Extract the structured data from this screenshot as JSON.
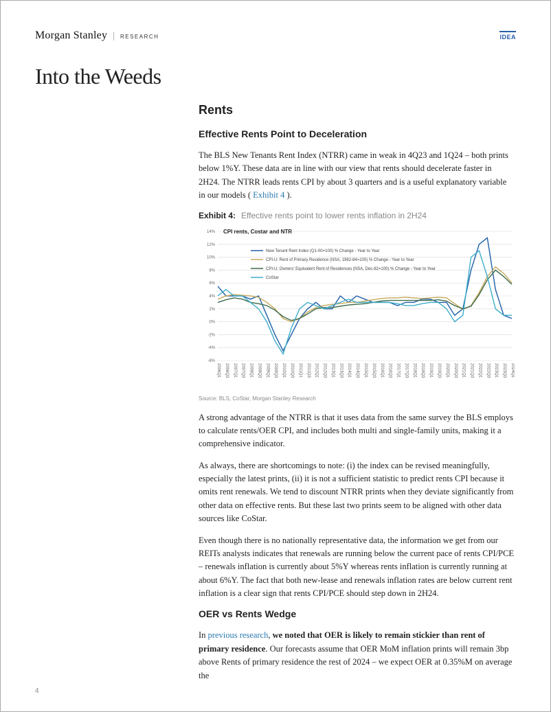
{
  "header": {
    "brand_main": "Morgan Stanley",
    "brand_sub": "RESEARCH",
    "idea_badge": "IDEA"
  },
  "page_title": "Into the Weeds",
  "page_number": "4",
  "section": {
    "h2": "Rents",
    "h3_1": "Effective Rents Point to Deceleration",
    "p1_a": "The BLS New Tenants Rent Index (NTRR) came in weak in 4Q23 and 1Q24 – both prints below 1%Y. These data are in line with our view that rents should decelerate faster in 2H24. The NTRR leads rents CPI by about 3 quarters and is a useful explanatory variable in our models ( ",
    "p1_link": "Exhibit 4",
    "p1_b": " ).",
    "exhibit": {
      "num": "Exhibit 4:",
      "caption": "Effective rents point to lower rents inflation in 2H24"
    },
    "chart": {
      "title": "CPI rents, Costar and NTR",
      "title_fontsize": 8,
      "title_color": "#222",
      "background_color": "#ffffff",
      "grid_color": "#d9d9d9",
      "axis_color": "#888",
      "label_fontsize": 7,
      "tick_fontsize": 6,
      "ylim": [
        -6,
        14
      ],
      "ytick_step": 2,
      "line_width": 1.4,
      "series": [
        {
          "name": "New Tenant Rent Index (Q1-00=100) % Change - Year to Year",
          "color": "#1f5fa8"
        },
        {
          "name": "CPI-U: Rent of Primary Residence (NSA, 1982-84=100) % Change - Year to Year",
          "color": "#c7a85b"
        },
        {
          "name": "CPI-U: Owners' Equivalent Rent of Residences (NSA, Dec-82=100) % Change - Year to Year",
          "color": "#3d6b4c"
        },
        {
          "name": "CoStar",
          "color": "#3dadc9"
        }
      ],
      "x_labels": [
        "2006Q1",
        "2006Q3",
        "2007Q1",
        "2007Q3",
        "2008Q1",
        "2008Q3",
        "2009Q1",
        "2009Q3",
        "2010Q1",
        "2010Q3",
        "2011Q1",
        "2011Q3",
        "2012Q1",
        "2012Q3",
        "2013Q1",
        "2013Q3",
        "2014Q1",
        "2014Q3",
        "2015Q1",
        "2015Q3",
        "2016Q1",
        "2016Q3",
        "2017Q1",
        "2017Q3",
        "2018Q1",
        "2018Q3",
        "2019Q1",
        "2019Q3",
        "2020Q1",
        "2020Q3",
        "2021Q1",
        "2021Q3",
        "2022Q1",
        "2022Q3",
        "2023Q1",
        "2023Q3",
        "2024Q1"
      ],
      "data": {
        "ntrr": [
          5.5,
          4,
          4,
          4,
          3.5,
          4,
          1,
          -2,
          -4.5,
          -2,
          0.5,
          2,
          3,
          2,
          2,
          4,
          3,
          4,
          3.5,
          3,
          3,
          3,
          2.5,
          3,
          3,
          3.5,
          3.5,
          3,
          3,
          1,
          2,
          8,
          12,
          13,
          5,
          1,
          0.5
        ],
        "cpi_rent": [
          3.5,
          4,
          4.2,
          4.1,
          4,
          3.8,
          3,
          2,
          0.5,
          0,
          0.5,
          1.5,
          2.2,
          2.5,
          2.7,
          2.8,
          3,
          3,
          3.2,
          3.4,
          3.6,
          3.7,
          3.7,
          3.8,
          3.7,
          3.6,
          3.7,
          3.8,
          3.7,
          2.8,
          1.9,
          2.5,
          4.5,
          7,
          8.5,
          7.5,
          6
        ],
        "oer": [
          3,
          3.4,
          3.7,
          3.5,
          3,
          2.8,
          2.5,
          1.8,
          0.8,
          0.2,
          0.5,
          1.2,
          2,
          2.2,
          2.2,
          2.4,
          2.6,
          2.7,
          2.8,
          3,
          3.2,
          3.3,
          3.3,
          3.3,
          3.3,
          3.3,
          3.3,
          3.4,
          3.2,
          2.5,
          2,
          2.4,
          4.2,
          6.5,
          8,
          7,
          5.8
        ],
        "costar": [
          4,
          5,
          4,
          4,
          3,
          2,
          0,
          -3,
          -5,
          -1,
          2,
          3,
          2.5,
          2,
          2.5,
          3,
          3.5,
          3,
          3,
          3,
          3,
          3,
          2.8,
          2.5,
          2.5,
          2.8,
          3,
          3,
          2,
          0,
          1,
          10,
          11,
          7,
          2,
          1,
          1
        ]
      }
    },
    "chart_source": "Source: BLS, CoStar, Morgan Stanley Research",
    "p2": "A strong advantage of the NTRR is that it uses data from the same survey the BLS employs to calculate rents/OER CPI, and includes both multi and single-family units, making it a comprehensive indicator.",
    "p3": "As always, there are shortcomings to note: (i) the index can be revised meaningfully, especially the latest prints, (ii) it is not a sufficient statistic to predict rents CPI because it omits rent renewals. We tend to discount NTRR prints when they deviate significantly from other data on effective rents. But these last two prints seem to be aligned with other data sources like CoStar.",
    "p4": "Even though there is no nationally representative data, the information we get from our REITs analysts indicates that renewals are running below the current pace of rents CPI/PCE – renewals inflation is currently about 5%Y whereas rents inflation is currently running at about 6%Y. The fact that both new-lease and renewals inflation rates are below current rent inflation is a clear sign that rents CPI/PCE should step down in 2H24.",
    "h3_2": "OER vs Rents Wedge",
    "p5_a": "In ",
    "p5_link": "previous research",
    "p5_b": ", ",
    "p5_bold": "we noted that OER is likely to remain stickier than rent of primary residence",
    "p5_c": ". Our forecasts assume that OER MoM inflation prints will remain 3bp above Rents of primary residence the rest of 2024 – we expect OER at 0.35%M on average the"
  }
}
